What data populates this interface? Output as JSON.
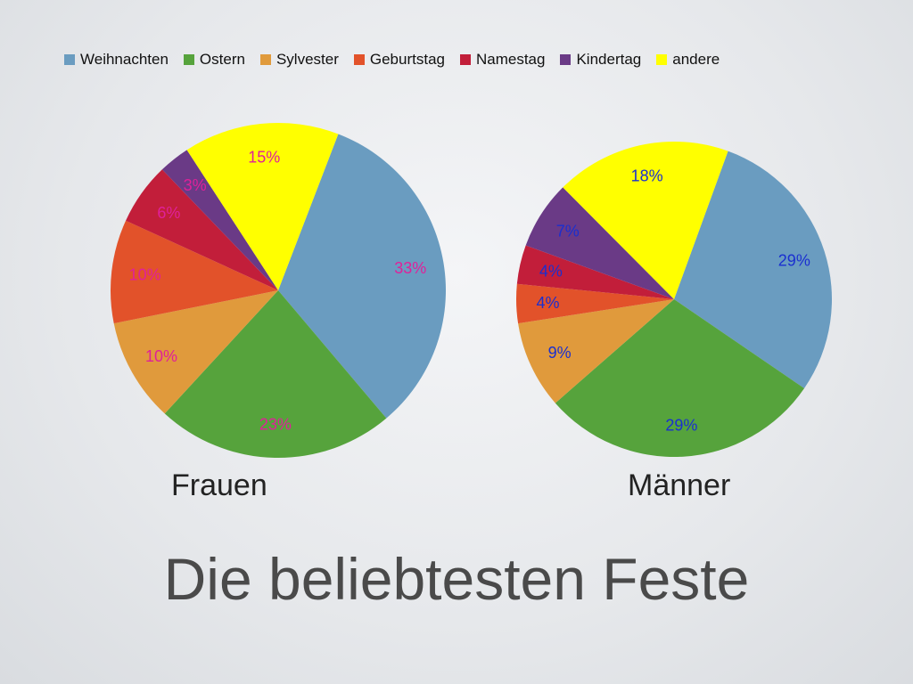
{
  "title": "Die beliebtesten Feste",
  "legend": [
    {
      "name": "Weihnachten",
      "color": "#6a9cc0"
    },
    {
      "name": "Ostern",
      "color": "#56a33c"
    },
    {
      "name": "Sylvester",
      "color": "#e09a3c"
    },
    {
      "name": "Geburtstag",
      "color": "#e2522a"
    },
    {
      "name": "Namestag",
      "color": "#c21e3a"
    },
    {
      "name": "Kindertag",
      "color": "#6a3a86"
    },
    {
      "name": "andere",
      "color": "#ffff00"
    }
  ],
  "chart_data": [
    {
      "type": "pie",
      "title": "Frauen",
      "label_color": "#e0209a",
      "slices": [
        {
          "name": "Weihnachten",
          "value": 33,
          "label": "33%",
          "color": "#6a9cc0"
        },
        {
          "name": "Ostern",
          "value": 23,
          "label": "23%",
          "color": "#56a33c"
        },
        {
          "name": "Sylvester",
          "value": 10,
          "label": "10%",
          "color": "#e09a3c"
        },
        {
          "name": "Geburtstag",
          "value": 10,
          "label": "10%",
          "color": "#e2522a"
        },
        {
          "name": "Namestag",
          "value": 6,
          "label": "6%",
          "color": "#c21e3a"
        },
        {
          "name": "Kindertag",
          "value": 3,
          "label": "3%",
          "color": "#6a3a86"
        },
        {
          "name": "andere",
          "value": 15,
          "label": "15%",
          "color": "#ffff00"
        }
      ]
    },
    {
      "type": "pie",
      "title": "Männer",
      "label_color": "#1a2fd0",
      "slices": [
        {
          "name": "Weihnachten",
          "value": 29,
          "label": "29%",
          "color": "#6a9cc0"
        },
        {
          "name": "Ostern",
          "value": 29,
          "label": "29%",
          "color": "#56a33c"
        },
        {
          "name": "Sylvester",
          "value": 9,
          "label": "9%",
          "color": "#e09a3c"
        },
        {
          "name": "Geburtstag",
          "value": 4,
          "label": "4%",
          "color": "#e2522a"
        },
        {
          "name": "Namestag",
          "value": 4,
          "label": "4%",
          "color": "#c21e3a"
        },
        {
          "name": "Kindertag",
          "value": 7,
          "label": "7%",
          "color": "#6a3a86"
        },
        {
          "name": "andere",
          "value": 18,
          "label": "18%",
          "color": "#ffff00"
        }
      ]
    }
  ]
}
